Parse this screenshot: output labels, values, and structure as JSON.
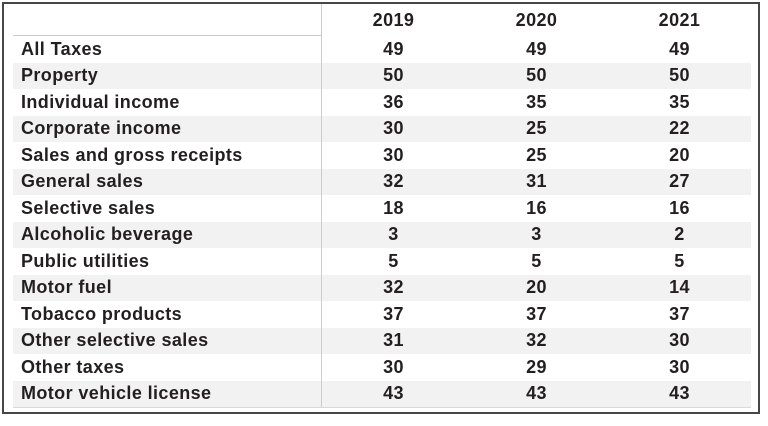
{
  "chart_data": {
    "type": "table",
    "title": "",
    "columns": [
      "2019",
      "2020",
      "2021"
    ],
    "rows": [
      {
        "label": "All Taxes",
        "values": [
          "49",
          "49",
          "49"
        ]
      },
      {
        "label": "Property",
        "values": [
          "50",
          "50",
          "50"
        ]
      },
      {
        "label": "Individual income",
        "values": [
          "36",
          "35",
          "35"
        ]
      },
      {
        "label": "Corporate income",
        "values": [
          "30",
          "25",
          "22"
        ]
      },
      {
        "label": "Sales and gross receipts",
        "values": [
          "30",
          "25",
          "20"
        ]
      },
      {
        "label": "General sales",
        "values": [
          "32",
          "31",
          "27"
        ]
      },
      {
        "label": "Selective sales",
        "values": [
          "18",
          "16",
          "16"
        ]
      },
      {
        "label": "Alcoholic beverage",
        "values": [
          "3",
          "3",
          "2"
        ]
      },
      {
        "label": "Public utilities",
        "values": [
          "5",
          "5",
          "5"
        ]
      },
      {
        "label": "Motor fuel",
        "values": [
          "32",
          "20",
          "14"
        ]
      },
      {
        "label": "Tobacco products",
        "values": [
          "37",
          "37",
          "37"
        ]
      },
      {
        "label": "Other selective sales",
        "values": [
          "31",
          "32",
          "30"
        ]
      },
      {
        "label": "Other taxes",
        "values": [
          "30",
          "29",
          "30"
        ]
      },
      {
        "label": "Motor vehicle license",
        "values": [
          "43",
          "43",
          "43"
        ]
      }
    ],
    "layout": {
      "stripe_color": "#f2f2f2",
      "grid_line_color": "#cccccc",
      "frame_border_color": "#474747",
      "text_color": "#231f20"
    }
  }
}
